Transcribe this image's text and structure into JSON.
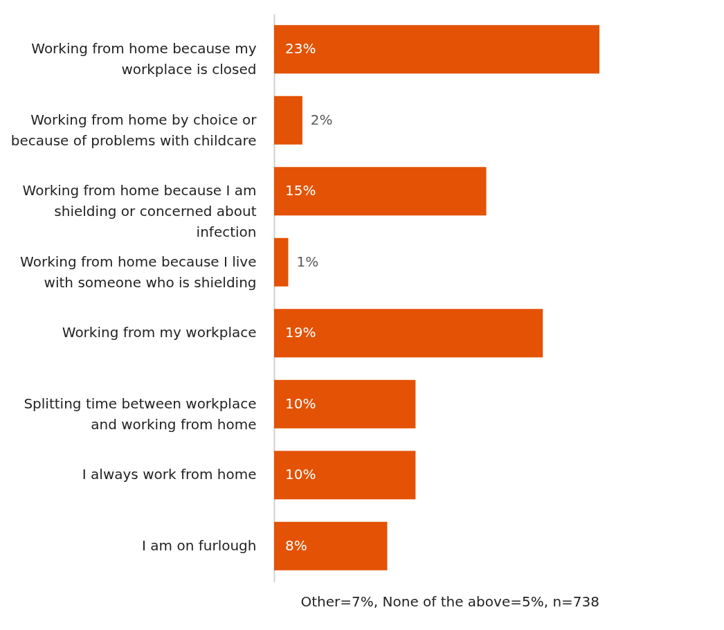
{
  "chart_data": {
    "type": "bar",
    "orientation": "horizontal",
    "categories": [
      "Working from home because my workplace is closed",
      "Working from home by choice or because of problems with childcare",
      "Working from home because I am shielding or concerned about infection",
      "Working from home because I live with someone who is shielding",
      "Working from my workplace",
      "Splitting time between workplace and working from home",
      "I always work from home",
      "I am on furlough"
    ],
    "values": [
      23,
      2,
      15,
      1,
      19,
      10,
      10,
      8
    ],
    "value_labels": [
      "23%",
      "2%",
      "15%",
      "1%",
      "19%",
      "10%",
      "10%",
      "8%"
    ],
    "color": "#e35205",
    "annotations": [
      "Other=7%, None of the above=5%, n=738"
    ]
  }
}
